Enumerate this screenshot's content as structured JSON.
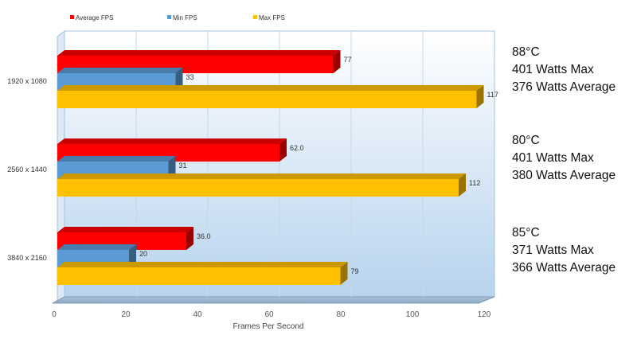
{
  "chart_data": {
    "type": "bar",
    "orientation": "horizontal",
    "style": "3d",
    "categories": [
      "1920 x 1080",
      "2560 x 1440",
      "3840 x 2160"
    ],
    "series": [
      {
        "name": "Average FPS",
        "color": "#ff0000",
        "values": [
          77,
          62.0,
          36.0
        ],
        "labels": [
          "77",
          "62.0",
          "36.0"
        ]
      },
      {
        "name": "Min FPS",
        "color": "#5b9bd5",
        "values": [
          33,
          31,
          20
        ],
        "labels": [
          "33",
          "31",
          "20"
        ]
      },
      {
        "name": "Max FPS",
        "color": "#ffc000",
        "values": [
          117,
          112,
          79
        ],
        "labels": [
          "117",
          "112",
          "79"
        ]
      }
    ],
    "xlabel": "Frames Per Second",
    "ylabel": "",
    "xlim": [
      0,
      120
    ],
    "xticks": [
      "0",
      "20",
      "40",
      "60",
      "80",
      "100",
      "120"
    ],
    "grid": true,
    "legend": "top-left"
  },
  "notes": [
    {
      "temp": "88°C",
      "max_watts": "401 Watts Max",
      "avg_watts": "376 Watts Average"
    },
    {
      "temp": "80°C",
      "max_watts": "401 Watts Max",
      "avg_watts": "380 Watts Average"
    },
    {
      "temp": "85°C",
      "max_watts": "371 Watts Max",
      "avg_watts": "366 Watts Average"
    }
  ]
}
